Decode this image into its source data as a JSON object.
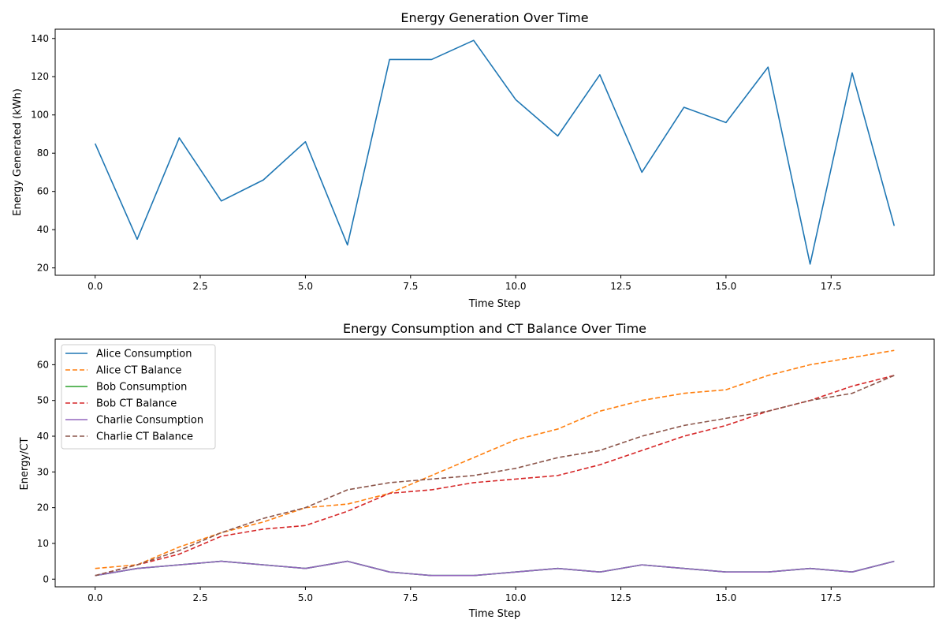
{
  "chart_data": [
    {
      "type": "line",
      "title": "Energy Generation Over Time",
      "xlabel": "Time Step",
      "ylabel": "Energy Generated (kWh)",
      "xlim": [
        -0.95,
        19.95
      ],
      "ylim": [
        16.15,
        144.85
      ],
      "x_ticks": [
        0,
        2.5,
        5,
        7.5,
        10,
        12.5,
        15,
        17.5
      ],
      "x_tick_labels": [
        "0.0",
        "2.5",
        "5.0",
        "7.5",
        "10.0",
        "12.5",
        "15.0",
        "17.5"
      ],
      "y_ticks": [
        20,
        40,
        60,
        80,
        100,
        120,
        140
      ],
      "y_tick_labels": [
        "20",
        "40",
        "60",
        "80",
        "100",
        "120",
        "140"
      ],
      "grid": false,
      "x": [
        0,
        1,
        2,
        3,
        4,
        5,
        6,
        7,
        8,
        9,
        10,
        11,
        12,
        13,
        14,
        15,
        16,
        17,
        18,
        19
      ],
      "series": [
        {
          "color": "#1f77b4",
          "dash": false,
          "values": [
            85,
            35,
            88,
            55,
            66,
            86,
            32,
            129,
            129,
            139,
            108,
            89,
            121,
            70,
            104,
            96,
            125,
            22,
            122,
            42
          ]
        }
      ]
    },
    {
      "type": "line",
      "title": "Energy Consumption and CT Balance Over Time",
      "xlabel": "Time Step",
      "ylabel": "Energy/CT",
      "xlim": [
        -0.95,
        19.95
      ],
      "ylim": [
        -2.15,
        67.15
      ],
      "x_ticks": [
        0,
        2.5,
        5,
        7.5,
        10,
        12.5,
        15,
        17.5
      ],
      "x_tick_labels": [
        "0.0",
        "2.5",
        "5.0",
        "7.5",
        "10.0",
        "12.5",
        "15.0",
        "17.5"
      ],
      "y_ticks": [
        0,
        10,
        20,
        30,
        40,
        50,
        60
      ],
      "y_tick_labels": [
        "0",
        "10",
        "20",
        "30",
        "40",
        "50",
        "60"
      ],
      "grid": false,
      "legend": "top-left",
      "x": [
        0,
        1,
        2,
        3,
        4,
        5,
        6,
        7,
        8,
        9,
        10,
        11,
        12,
        13,
        14,
        15,
        16,
        17,
        18,
        19
      ],
      "series": [
        {
          "name": "Alice Consumption",
          "color": "#1f77b4",
          "dash": false,
          "values": [
            1,
            3,
            4,
            5,
            4,
            3,
            5,
            2,
            1,
            1,
            2,
            3,
            2,
            4,
            3,
            2,
            2,
            3,
            2,
            5
          ]
        },
        {
          "name": "Alice CT Balance",
          "color": "#ff7f0e",
          "dash": true,
          "values": [
            3,
            4,
            9,
            13,
            16,
            20,
            21,
            24,
            29,
            34,
            39,
            42,
            47,
            50,
            52,
            53,
            57,
            60,
            62,
            64
          ]
        },
        {
          "name": "Bob Consumption",
          "color": "#2ca02c",
          "dash": false,
          "values": [
            1,
            3,
            4,
            5,
            4,
            3,
            5,
            2,
            1,
            1,
            2,
            3,
            2,
            4,
            3,
            2,
            2,
            3,
            2,
            5
          ]
        },
        {
          "name": "Bob CT Balance",
          "color": "#d62728",
          "dash": true,
          "values": [
            1,
            4,
            7,
            12,
            14,
            15,
            19,
            24,
            25,
            27,
            28,
            29,
            32,
            36,
            40,
            43,
            47,
            50,
            54,
            57
          ]
        },
        {
          "name": "Charlie Consumption",
          "color": "#9467bd",
          "dash": false,
          "values": [
            1,
            3,
            4,
            5,
            4,
            3,
            5,
            2,
            1,
            1,
            2,
            3,
            2,
            4,
            3,
            2,
            2,
            3,
            2,
            5
          ]
        },
        {
          "name": "Charlie CT Balance",
          "color": "#8c564b",
          "dash": true,
          "values": [
            1,
            4,
            8,
            13,
            17,
            20,
            25,
            27,
            28,
            29,
            31,
            34,
            36,
            40,
            43,
            45,
            47,
            50,
            52,
            57
          ]
        }
      ]
    }
  ]
}
